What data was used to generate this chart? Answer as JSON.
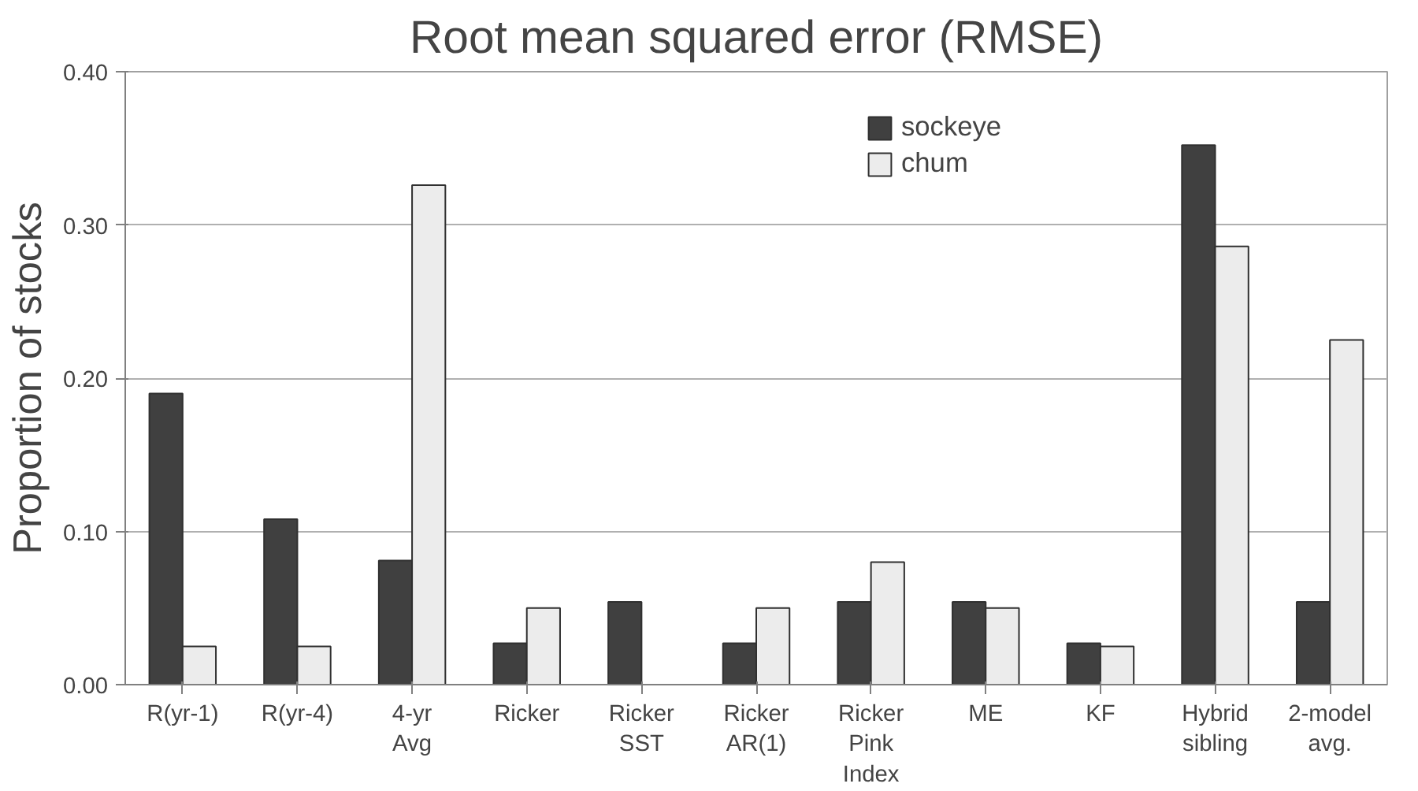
{
  "chart_data": {
    "type": "bar",
    "title": "Root mean squared error (RMSE)",
    "ylabel": "Proportion of stocks",
    "categories": [
      "R(yr-1)",
      "R(yr-4)",
      "4-yr\nAvg",
      "Ricker",
      "Ricker\nSST",
      "Ricker\nAR(1)",
      "Ricker\nPink\nIndex",
      "ME",
      "KF",
      "Hybrid\nsibling",
      "2-model\navg."
    ],
    "series": [
      {
        "name": "sockeye",
        "color": "#404040",
        "values": [
          0.19,
          0.108,
          0.081,
          0.027,
          0.054,
          0.027,
          0.054,
          0.054,
          0.027,
          0.352,
          0.054
        ]
      },
      {
        "name": "chum",
        "color": "#ececec",
        "values": [
          0.025,
          0.025,
          0.326,
          0.05,
          0,
          0.05,
          0.08,
          0.05,
          0.025,
          0.286,
          0.225
        ]
      }
    ],
    "ylim": [
      0,
      0.4
    ],
    "yticks": [
      {
        "value": 0,
        "label": "0.00"
      },
      {
        "value": 0.1,
        "label": "0.10"
      },
      {
        "value": 0.2,
        "label": "0.20"
      },
      {
        "value": 0.3,
        "label": "0.30"
      },
      {
        "value": 0.4,
        "label": "0.40"
      }
    ],
    "grid": "y",
    "legend": "top"
  }
}
